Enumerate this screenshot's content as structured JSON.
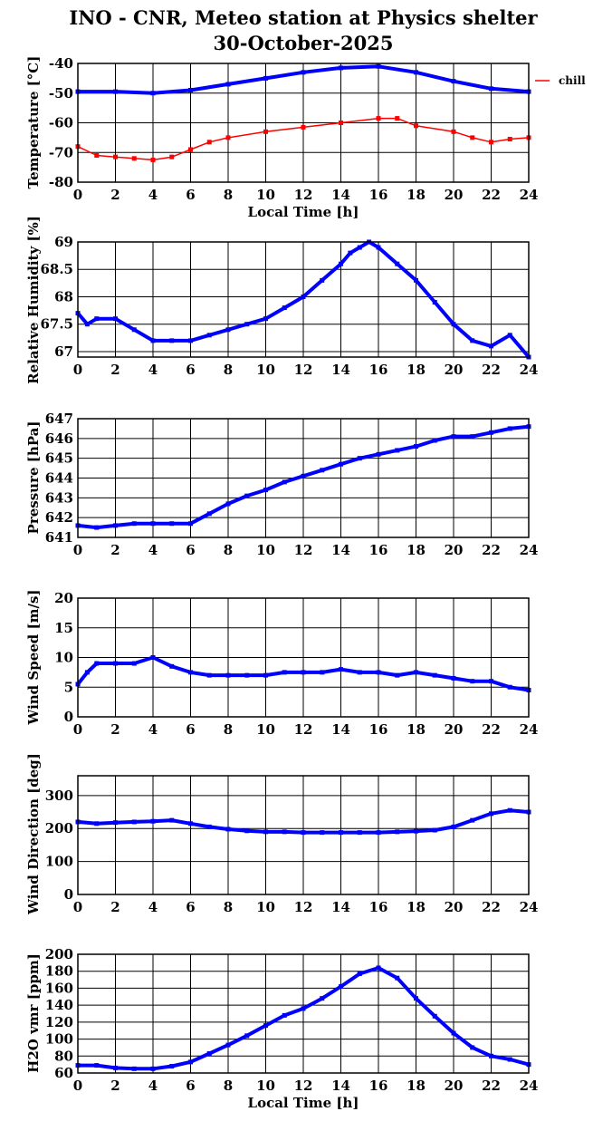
{
  "title_line1": "INO - CNR, Meteo station at Physics shelter",
  "title_line2": "30-October-2025",
  "chart_data": [
    {
      "type": "line",
      "ylabel": "Temperature [°C]",
      "xlabel": "Local Time [h]",
      "xlim": [
        0,
        24
      ],
      "ylim": [
        -80,
        -40
      ],
      "yticks": [
        -80,
        -70,
        -60,
        -50,
        -40
      ],
      "ytick_labels": [
        "-80",
        "-70",
        "-60",
        "-50",
        "-40"
      ],
      "grid": true,
      "legend": {
        "position": "right-top",
        "entries": [
          "chill"
        ]
      },
      "series": [
        {
          "name": "",
          "color": "#0000ff",
          "x": [
            0,
            2,
            4,
            6,
            8,
            10,
            12,
            14,
            16,
            18,
            20,
            22,
            24
          ],
          "y": [
            -49.5,
            -49.5,
            -50,
            -49,
            -47,
            -45,
            -43,
            -41.5,
            -41,
            -43,
            -46,
            -48.5,
            -49.5
          ]
        },
        {
          "name": "chill",
          "color": "#ff0000",
          "x": [
            0,
            1,
            2,
            3,
            4,
            5,
            6,
            7,
            8,
            10,
            12,
            14,
            16,
            17,
            18,
            20,
            21,
            22,
            23,
            24
          ],
          "y": [
            -68,
            -71,
            -71.5,
            -72,
            -72.5,
            -71.5,
            -69,
            -66.5,
            -65,
            -63,
            -61.5,
            -60,
            -58.5,
            -58.5,
            -61,
            -63,
            -65,
            -66.5,
            -65.5,
            -65
          ]
        }
      ]
    },
    {
      "type": "scatter",
      "ylabel": "Relative Humidity [%]",
      "xlabel": "",
      "xlim": [
        0,
        24
      ],
      "ylim": [
        66.9,
        69
      ],
      "yticks": [
        67,
        67.5,
        68,
        68.5,
        69
      ],
      "ytick_labels": [
        "67",
        "67.5",
        "68",
        "68.5",
        "69"
      ],
      "grid": true,
      "series": [
        {
          "name": "",
          "color": "#0000ff",
          "x": [
            0,
            0.5,
            1,
            2,
            3,
            4,
            5,
            6,
            7,
            8,
            9,
            10,
            11,
            12,
            13,
            14,
            14.5,
            15,
            15.5,
            16,
            17,
            18,
            19,
            20,
            21,
            22,
            23,
            24
          ],
          "y": [
            67.7,
            67.5,
            67.6,
            67.6,
            67.4,
            67.2,
            67.2,
            67.2,
            67.3,
            67.4,
            67.5,
            67.6,
            67.8,
            68.0,
            68.3,
            68.6,
            68.8,
            68.9,
            69.0,
            68.9,
            68.6,
            68.3,
            67.9,
            67.5,
            67.2,
            67.1,
            67.3,
            66.9
          ]
        }
      ]
    },
    {
      "type": "scatter",
      "ylabel": "Pressure [hPa]",
      "xlabel": "",
      "xlim": [
        0,
        24
      ],
      "ylim": [
        641,
        647
      ],
      "yticks": [
        641,
        642,
        643,
        644,
        645,
        646,
        647
      ],
      "ytick_labels": [
        "641",
        "642",
        "643",
        "644",
        "645",
        "646",
        "647"
      ],
      "grid": true,
      "series": [
        {
          "name": "",
          "color": "#0000ff",
          "x": [
            0,
            1,
            2,
            3,
            4,
            5,
            6,
            7,
            8,
            9,
            10,
            11,
            12,
            13,
            14,
            15,
            16,
            17,
            18,
            19,
            20,
            21,
            22,
            23,
            24
          ],
          "y": [
            641.6,
            641.5,
            641.6,
            641.7,
            641.7,
            641.7,
            641.7,
            642.2,
            642.7,
            643.1,
            643.4,
            643.8,
            644.1,
            644.4,
            644.7,
            645.0,
            645.2,
            645.4,
            645.6,
            645.9,
            646.1,
            646.1,
            646.3,
            646.5,
            646.6
          ]
        }
      ]
    },
    {
      "type": "line",
      "ylabel": "Wind Speed [m/s]",
      "xlabel": "",
      "xlim": [
        0,
        24
      ],
      "ylim": [
        0,
        20
      ],
      "yticks": [
        0,
        5,
        10,
        15,
        20
      ],
      "ytick_labels": [
        "0",
        "5",
        "10",
        "15",
        "20"
      ],
      "grid": true,
      "series": [
        {
          "name": "",
          "color": "#0000ff",
          "x": [
            0,
            0.5,
            1,
            2,
            3,
            4,
            5,
            6,
            7,
            8,
            9,
            10,
            11,
            12,
            13,
            14,
            15,
            16,
            17,
            18,
            19,
            20,
            21,
            22,
            23,
            24
          ],
          "y": [
            5.5,
            7.5,
            9,
            9,
            9,
            10,
            8.5,
            7.5,
            7,
            7,
            7,
            7,
            7.5,
            7.5,
            7.5,
            8,
            7.5,
            7.5,
            7,
            7.5,
            7,
            6.5,
            6,
            6,
            5,
            4.5
          ]
        }
      ]
    },
    {
      "type": "line",
      "ylabel": "Wind Direction [deg]",
      "xlabel": "",
      "xlim": [
        0,
        24
      ],
      "ylim": [
        0,
        360
      ],
      "yticks": [
        0,
        100,
        200,
        300
      ],
      "ytick_labels": [
        "0",
        "100",
        "200",
        "300"
      ],
      "grid": true,
      "series": [
        {
          "name": "",
          "color": "#0000ff",
          "x": [
            0,
            1,
            2,
            3,
            4,
            5,
            6,
            7,
            8,
            9,
            10,
            11,
            12,
            13,
            14,
            15,
            16,
            17,
            18,
            19,
            20,
            21,
            22,
            23,
            24
          ],
          "y": [
            220,
            215,
            218,
            220,
            222,
            225,
            215,
            205,
            198,
            193,
            190,
            190,
            188,
            188,
            188,
            188,
            188,
            190,
            192,
            195,
            205,
            225,
            245,
            255,
            250
          ]
        }
      ]
    },
    {
      "type": "line",
      "ylabel": "H2O vmr [ppm]",
      "xlabel": "Local Time [h]",
      "xlim": [
        0,
        24
      ],
      "ylim": [
        60,
        200
      ],
      "yticks": [
        60,
        80,
        100,
        120,
        140,
        160,
        180,
        200
      ],
      "ytick_labels": [
        "60",
        "80",
        "100",
        "120",
        "140",
        "160",
        "180",
        "200"
      ],
      "grid": true,
      "series": [
        {
          "name": "",
          "color": "#0000ff",
          "x": [
            0,
            1,
            2,
            3,
            4,
            5,
            6,
            7,
            8,
            9,
            10,
            11,
            12,
            13,
            14,
            15,
            16,
            17,
            18,
            19,
            20,
            21,
            22,
            23,
            24
          ],
          "y": [
            69,
            69,
            66,
            65,
            65,
            68,
            73,
            83,
            93,
            104,
            116,
            128,
            136,
            148,
            162,
            177,
            184,
            172,
            148,
            127,
            107,
            90,
            80,
            76,
            70
          ]
        }
      ]
    }
  ],
  "xticks": [
    0,
    2,
    4,
    6,
    8,
    10,
    12,
    14,
    16,
    18,
    20,
    22,
    24
  ],
  "xtick_labels": [
    "0",
    "2",
    "4",
    "6",
    "8",
    "10",
    "12",
    "14",
    "16",
    "18",
    "20",
    "22",
    "24"
  ]
}
